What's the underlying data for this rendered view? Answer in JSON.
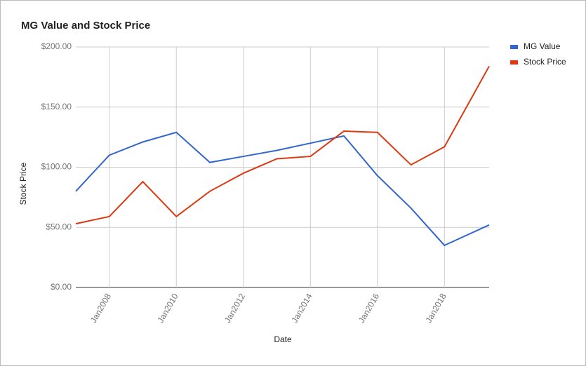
{
  "chart_data": {
    "type": "line",
    "title": "MG Value and Stock Price",
    "x_label": "Date",
    "y_label": "Stock Price",
    "x": [
      "2007-01",
      "2008-01",
      "2009-01",
      "2010-01",
      "2011-01",
      "2012-01",
      "2013-01",
      "2014-01",
      "2015-01",
      "2016-01",
      "2017-01",
      "2018-01",
      "2019-05"
    ],
    "series": [
      {
        "name": "MG Value",
        "color": "#3366cc",
        "values": [
          80,
          110,
          121,
          129,
          104,
          109,
          114,
          120,
          126,
          93,
          66,
          35,
          52
        ]
      },
      {
        "name": "Stock Price",
        "color": "#dc3912",
        "values": [
          53,
          59,
          88,
          59,
          80,
          95,
          107,
          109,
          130,
          129,
          102,
          117,
          184
        ]
      }
    ],
    "xlim": [
      "2007-01",
      "2019-05"
    ],
    "xticks": [
      {
        "value": "2008-01",
        "label": "Jan2008"
      },
      {
        "value": "2010-01",
        "label": "Jan2010"
      },
      {
        "value": "2012-01",
        "label": "Jan2012"
      },
      {
        "value": "2014-01",
        "label": "Jan2014"
      },
      {
        "value": "2016-01",
        "label": "Jan2016"
      },
      {
        "value": "2018-01",
        "label": "Jan2018"
      }
    ],
    "ylim": [
      0,
      200
    ],
    "yticks": [
      {
        "value": 0,
        "label": "$0.00"
      },
      {
        "value": 50,
        "label": "$50.00"
      },
      {
        "value": 100,
        "label": "$100.00"
      },
      {
        "value": 150,
        "label": "$150.00"
      },
      {
        "value": 200,
        "label": "$200.00"
      }
    ],
    "grid": true,
    "legend": "right"
  }
}
